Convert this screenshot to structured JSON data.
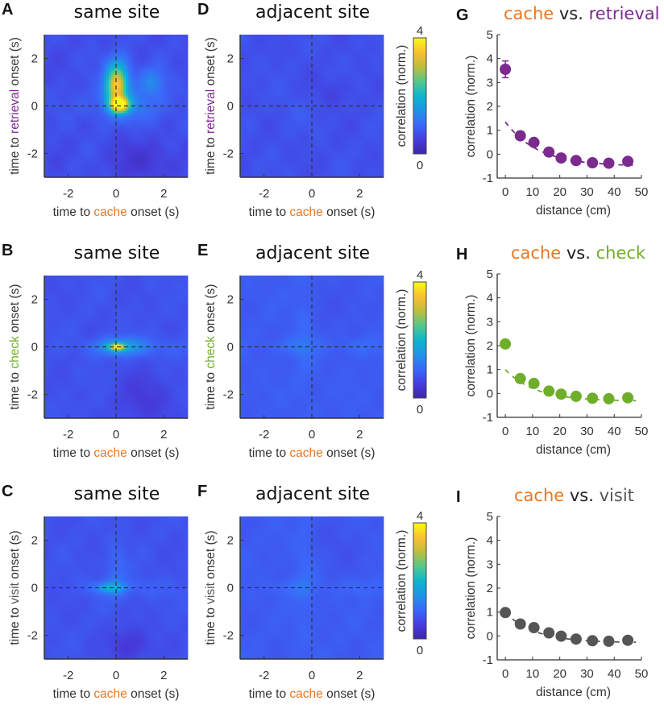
{
  "colors": {
    "cache": "#e87722",
    "retrieval": "#7b2a8e",
    "check": "#6fae2a",
    "visit": "#555555",
    "vs": "#222222",
    "text": "#333333"
  },
  "heatmaps": [
    {
      "id": "A",
      "letter": "A",
      "title": "same site",
      "ylabel_pre": "time to ",
      "ylabel_event": "retrieval",
      "ylabel_post": " onset (s)",
      "event_color": "retrieval",
      "xlabel_pre": "time to ",
      "xlabel_event": "cache",
      "xlabel_post": " onset (s)",
      "peak": 3.8,
      "pattern": "strong"
    },
    {
      "id": "D",
      "letter": "D",
      "title": "adjacent site",
      "ylabel_pre": "time to ",
      "ylabel_event": "retrieval",
      "ylabel_post": " onset (s)",
      "event_color": "retrieval",
      "xlabel_pre": "time to ",
      "xlabel_event": "cache",
      "xlabel_post": " onset (s)",
      "peak": 0.9,
      "pattern": "flat"
    },
    {
      "id": "B",
      "letter": "B",
      "title": "same site",
      "ylabel_pre": "time to ",
      "ylabel_event": "check",
      "ylabel_post": " onset (s)",
      "event_color": "check",
      "xlabel_pre": "time to ",
      "xlabel_event": "cache",
      "xlabel_post": " onset (s)",
      "peak": 3.0,
      "pattern": "point"
    },
    {
      "id": "E",
      "letter": "E",
      "title": "adjacent site",
      "ylabel_pre": "time to ",
      "ylabel_event": "check",
      "ylabel_post": " onset (s)",
      "event_color": "check",
      "xlabel_pre": "time to ",
      "xlabel_event": "cache",
      "xlabel_post": " onset (s)",
      "peak": 1.3,
      "pattern": "cross"
    },
    {
      "id": "C",
      "letter": "C",
      "title": "same site",
      "ylabel_pre": "time to ",
      "ylabel_event": "visit",
      "ylabel_post": " onset (s)",
      "event_color": "visit",
      "xlabel_pre": "time to ",
      "xlabel_event": "cache",
      "xlabel_post": " onset (s)",
      "peak": 1.8,
      "pattern": "weak"
    },
    {
      "id": "F",
      "letter": "F",
      "title": "adjacent site",
      "ylabel_pre": "time to ",
      "ylabel_event": "visit",
      "ylabel_post": " onset (s)",
      "event_color": "visit",
      "xlabel_pre": "time to ",
      "xlabel_event": "cache",
      "xlabel_post": " onset (s)",
      "peak": 1.3,
      "pattern": "cross"
    }
  ],
  "colorbar": {
    "label": "correlation (norm.)",
    "min_label": "0",
    "max_label": "4",
    "min": 0,
    "max": 4
  },
  "chart_data": [
    {
      "type": "heatmap",
      "panel": "A",
      "title": "same site",
      "xlabel": "time to cache onset (s)",
      "ylabel": "time to retrieval onset (s)",
      "xlim": [
        -3,
        3
      ],
      "ylim": [
        -3,
        3
      ],
      "xticks": [
        -2,
        0,
        2
      ],
      "yticks": [
        -2,
        0,
        2
      ],
      "colorbar": {
        "label": "correlation (norm.)",
        "range": [
          0,
          4
        ]
      },
      "description": "Strong peak (~4) near (0.1, 0.1) extending upward to ~y=1.5; weaker lobe toward x~1.5, y~1"
    },
    {
      "type": "heatmap",
      "panel": "D",
      "title": "adjacent site",
      "xlabel": "time to cache onset (s)",
      "ylabel": "time to retrieval onset (s)",
      "xlim": [
        -3,
        3
      ],
      "ylim": [
        -3,
        3
      ],
      "xticks": [
        -2,
        0,
        2
      ],
      "yticks": [
        -2,
        0,
        2
      ],
      "colorbar": {
        "label": "correlation (norm.)",
        "range": [
          0,
          4
        ]
      },
      "description": "Nearly uniform low correlation (~0.5-1)"
    },
    {
      "type": "heatmap",
      "panel": "B",
      "title": "same site",
      "xlabel": "time to cache onset (s)",
      "ylabel": "time to check onset (s)",
      "xlim": [
        -3,
        3
      ],
      "ylim": [
        -3,
        3
      ],
      "xticks": [
        -2,
        0,
        2
      ],
      "yticks": [
        -2,
        0,
        2
      ],
      "colorbar": {
        "label": "correlation (norm.)",
        "range": [
          0,
          4
        ]
      },
      "description": "Focal peak (~3) at (0, 0) elongated along x"
    },
    {
      "type": "heatmap",
      "panel": "E",
      "title": "adjacent site",
      "xlabel": "time to cache onset (s)",
      "ylabel": "time to check onset (s)",
      "xlim": [
        -3,
        3
      ],
      "ylim": [
        -3,
        3
      ],
      "xticks": [
        -2,
        0,
        2
      ],
      "yticks": [
        -2,
        0,
        2
      ],
      "colorbar": {
        "label": "correlation (norm.)",
        "range": [
          0,
          4
        ]
      },
      "description": "Low, faint cross-shaped band along x=0 and y=0"
    },
    {
      "type": "heatmap",
      "panel": "C",
      "title": "same site",
      "xlabel": "time to cache onset (s)",
      "ylabel": "time to visit onset (s)",
      "xlim": [
        -3,
        3
      ],
      "ylim": [
        -3,
        3
      ],
      "xticks": [
        -2,
        0,
        2
      ],
      "yticks": [
        -2,
        0,
        2
      ],
      "colorbar": {
        "label": "correlation (norm.)",
        "range": [
          0,
          4
        ]
      },
      "description": "Weak peak (~1.8) near (-0.3, 0)"
    },
    {
      "type": "heatmap",
      "panel": "F",
      "title": "adjacent site",
      "xlabel": "time to cache onset (s)",
      "ylabel": "time to visit onset (s)",
      "xlim": [
        -3,
        3
      ],
      "ylim": [
        -3,
        3
      ],
      "xticks": [
        -2,
        0,
        2
      ],
      "yticks": [
        -2,
        0,
        2
      ],
      "colorbar": {
        "label": "correlation (norm.)",
        "range": [
          0,
          4
        ]
      },
      "description": "Low, faint cross-shaped band"
    },
    {
      "type": "scatter",
      "panel": "G",
      "title_parts": [
        {
          "text": "cache",
          "color": "cache"
        },
        {
          "text": " vs. ",
          "color": "vs"
        },
        {
          "text": "retrieval",
          "color": "retrieval"
        }
      ],
      "xlabel": "distance (cm)",
      "ylabel": "correlation (norm.)",
      "xlim": [
        -3,
        50
      ],
      "ylim": [
        -1,
        5
      ],
      "xticks": [
        0,
        10,
        20,
        30,
        40,
        50
      ],
      "yticks": [
        -1,
        0,
        1,
        2,
        3,
        4,
        5
      ],
      "color": "retrieval",
      "x": [
        0,
        5.5,
        10.5,
        16,
        20.5,
        26,
        32,
        38,
        45
      ],
      "y": [
        3.55,
        0.77,
        0.49,
        0.09,
        -0.16,
        -0.27,
        -0.36,
        -0.38,
        -0.3
      ],
      "error_first": 0.35,
      "fit": {
        "type": "exponential-dashed",
        "x_start": 0,
        "x_end": 48,
        "y0": 1.35,
        "plateau": -0.5,
        "tau": 12
      }
    },
    {
      "type": "scatter",
      "panel": "H",
      "title_parts": [
        {
          "text": "cache",
          "color": "cache"
        },
        {
          "text": " vs. ",
          "color": "vs"
        },
        {
          "text": "check",
          "color": "check"
        }
      ],
      "xlabel": "distance (cm)",
      "ylabel": "correlation (norm.)",
      "xlim": [
        -3,
        50
      ],
      "ylim": [
        -1,
        5
      ],
      "xticks": [
        0,
        10,
        20,
        30,
        40,
        50
      ],
      "yticks": [
        -1,
        0,
        1,
        2,
        3,
        4,
        5
      ],
      "color": "check",
      "x": [
        0,
        5.5,
        10.5,
        16,
        20.5,
        26,
        32,
        38,
        45
      ],
      "y": [
        2.07,
        0.62,
        0.42,
        0.1,
        -0.03,
        -0.12,
        -0.2,
        -0.22,
        -0.18
      ],
      "error_first": 0.1,
      "fit": {
        "type": "exponential-dashed",
        "x_start": 0,
        "x_end": 48,
        "y0": 1.0,
        "plateau": -0.32,
        "tau": 11
      }
    },
    {
      "type": "scatter",
      "panel": "I",
      "title_parts": [
        {
          "text": "cache",
          "color": "cache"
        },
        {
          "text": " vs. ",
          "color": "vs"
        },
        {
          "text": "visit",
          "color": "visit"
        }
      ],
      "xlabel": "distance (cm)",
      "ylabel": "correlation (norm.)",
      "xlim": [
        -3,
        50
      ],
      "ylim": [
        -1,
        5
      ],
      "xticks": [
        0,
        10,
        20,
        30,
        40,
        50
      ],
      "yticks": [
        -1,
        0,
        1,
        2,
        3,
        4,
        5
      ],
      "color": "visit",
      "x": [
        0,
        5.5,
        10.5,
        16,
        20.5,
        26,
        32,
        38,
        45
      ],
      "y": [
        0.98,
        0.5,
        0.35,
        0.13,
        -0.01,
        -0.13,
        -0.2,
        -0.22,
        -0.18
      ],
      "error_first": 0.05,
      "fit": {
        "type": "exponential-dashed",
        "x_start": 0,
        "x_end": 48,
        "y0": 0.98,
        "plateau": -0.28,
        "tau": 11
      }
    }
  ]
}
